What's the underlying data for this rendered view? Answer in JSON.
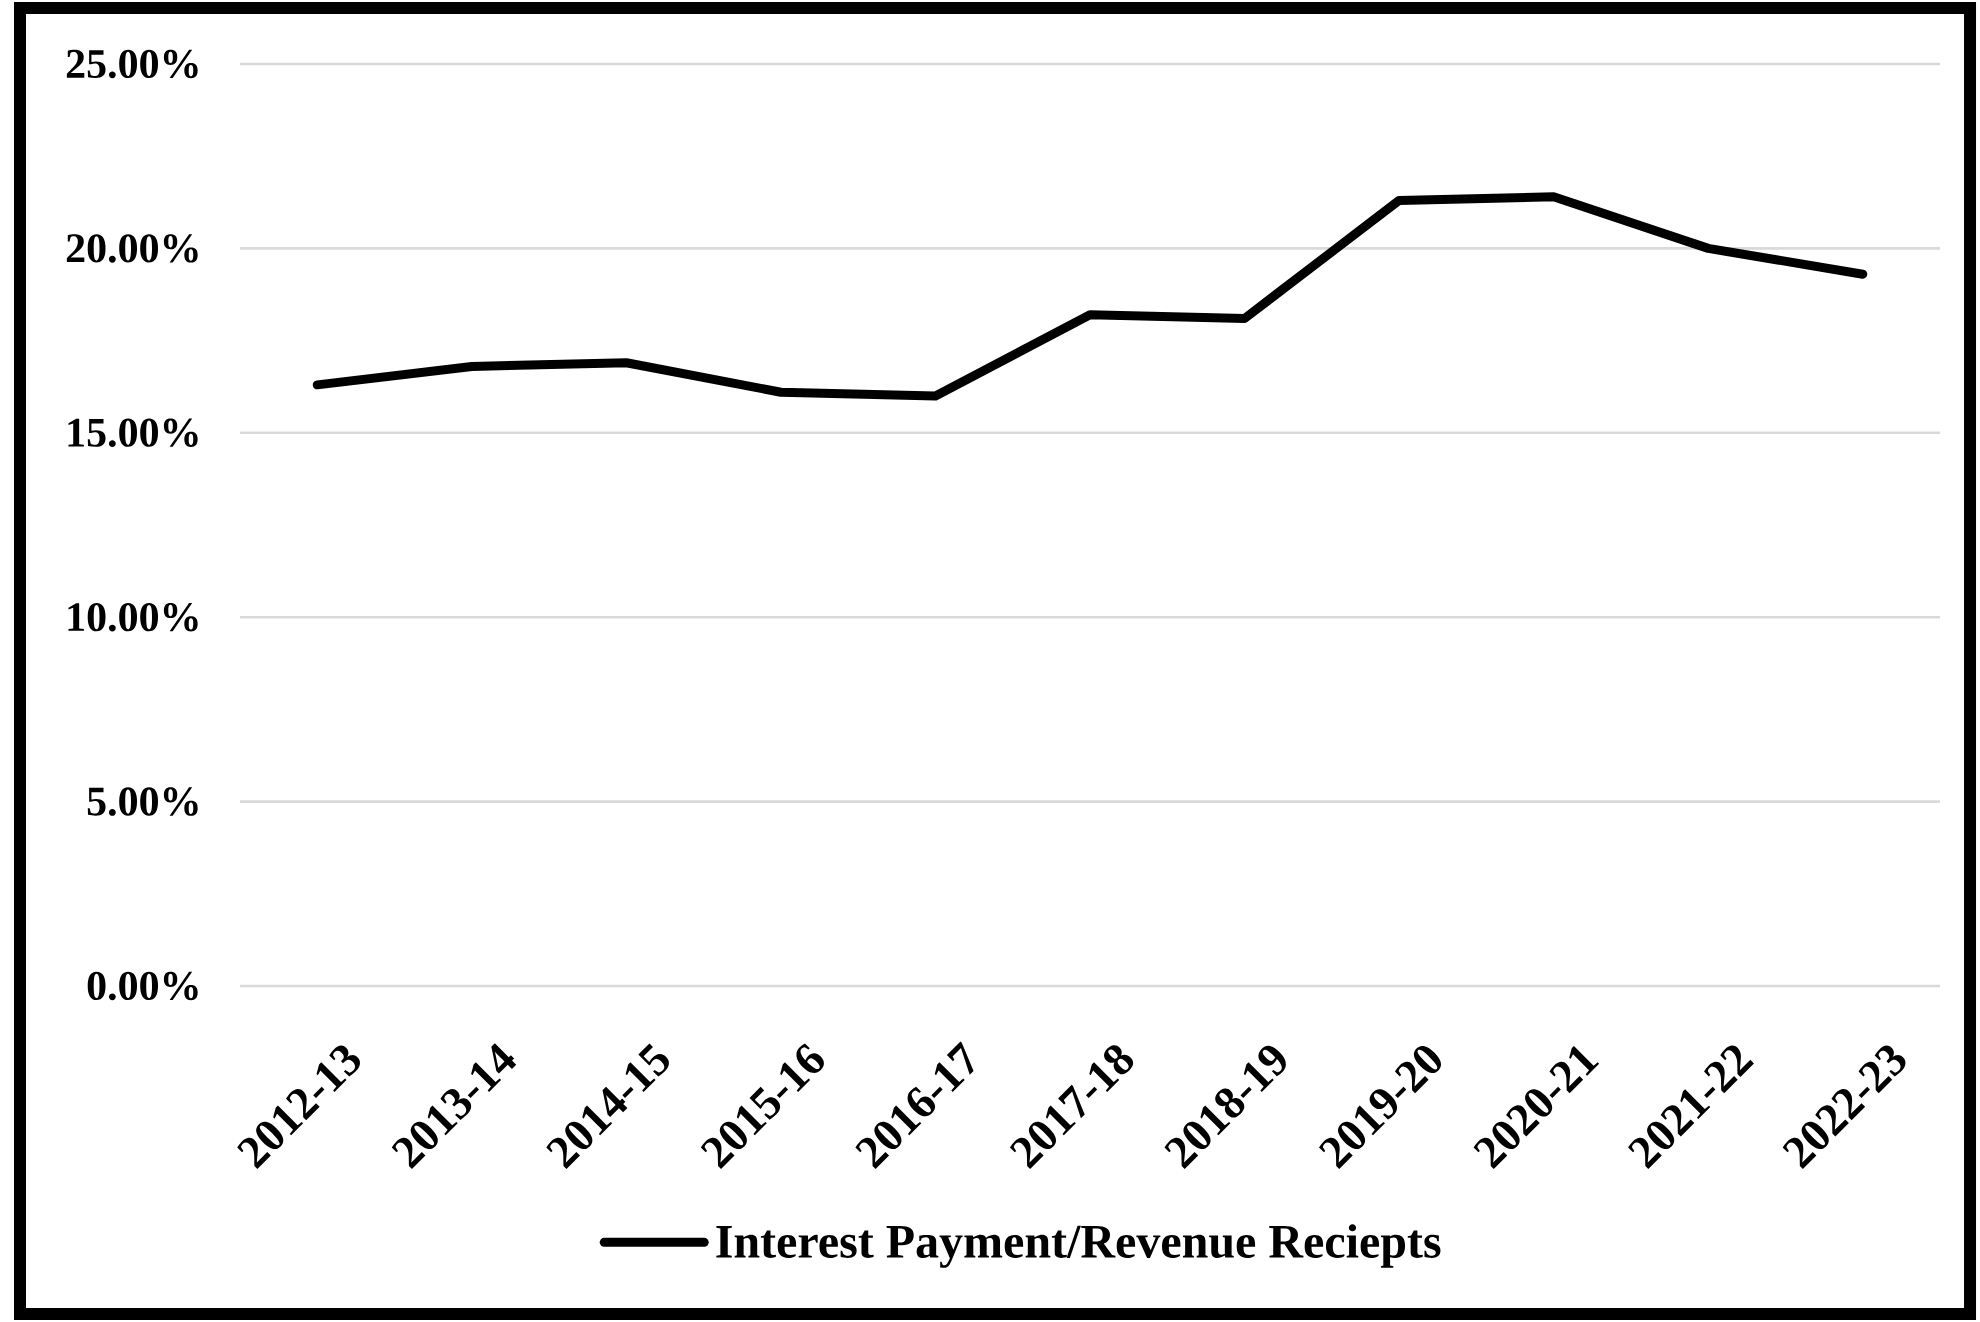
{
  "chart_data": {
    "type": "line",
    "categories": [
      "2012-13",
      "2013-14",
      "2014-15",
      "2015-16",
      "2016-17",
      "2017-18",
      "2018-19",
      "2019-20",
      "2020-21",
      "2021-22",
      "2022-23"
    ],
    "series": [
      {
        "name": "Interest Payment/Revenue Reciepts",
        "color": "#000000",
        "values": [
          16.3,
          16.8,
          16.9,
          16.1,
          16.0,
          18.2,
          18.1,
          21.3,
          21.4,
          20.0,
          19.3
        ]
      }
    ],
    "ylim": [
      0,
      25
    ],
    "yticks": [
      {
        "value": 0,
        "label": "0.00%"
      },
      {
        "value": 5,
        "label": "5.00%"
      },
      {
        "value": 10,
        "label": "10.00%"
      },
      {
        "value": 15,
        "label": "15.00%"
      },
      {
        "value": 20,
        "label": "20.00%"
      },
      {
        "value": 25,
        "label": "25.00%"
      }
    ],
    "grid": "y",
    "legend": "bottom",
    "marker": "none",
    "line_style": "solid"
  }
}
